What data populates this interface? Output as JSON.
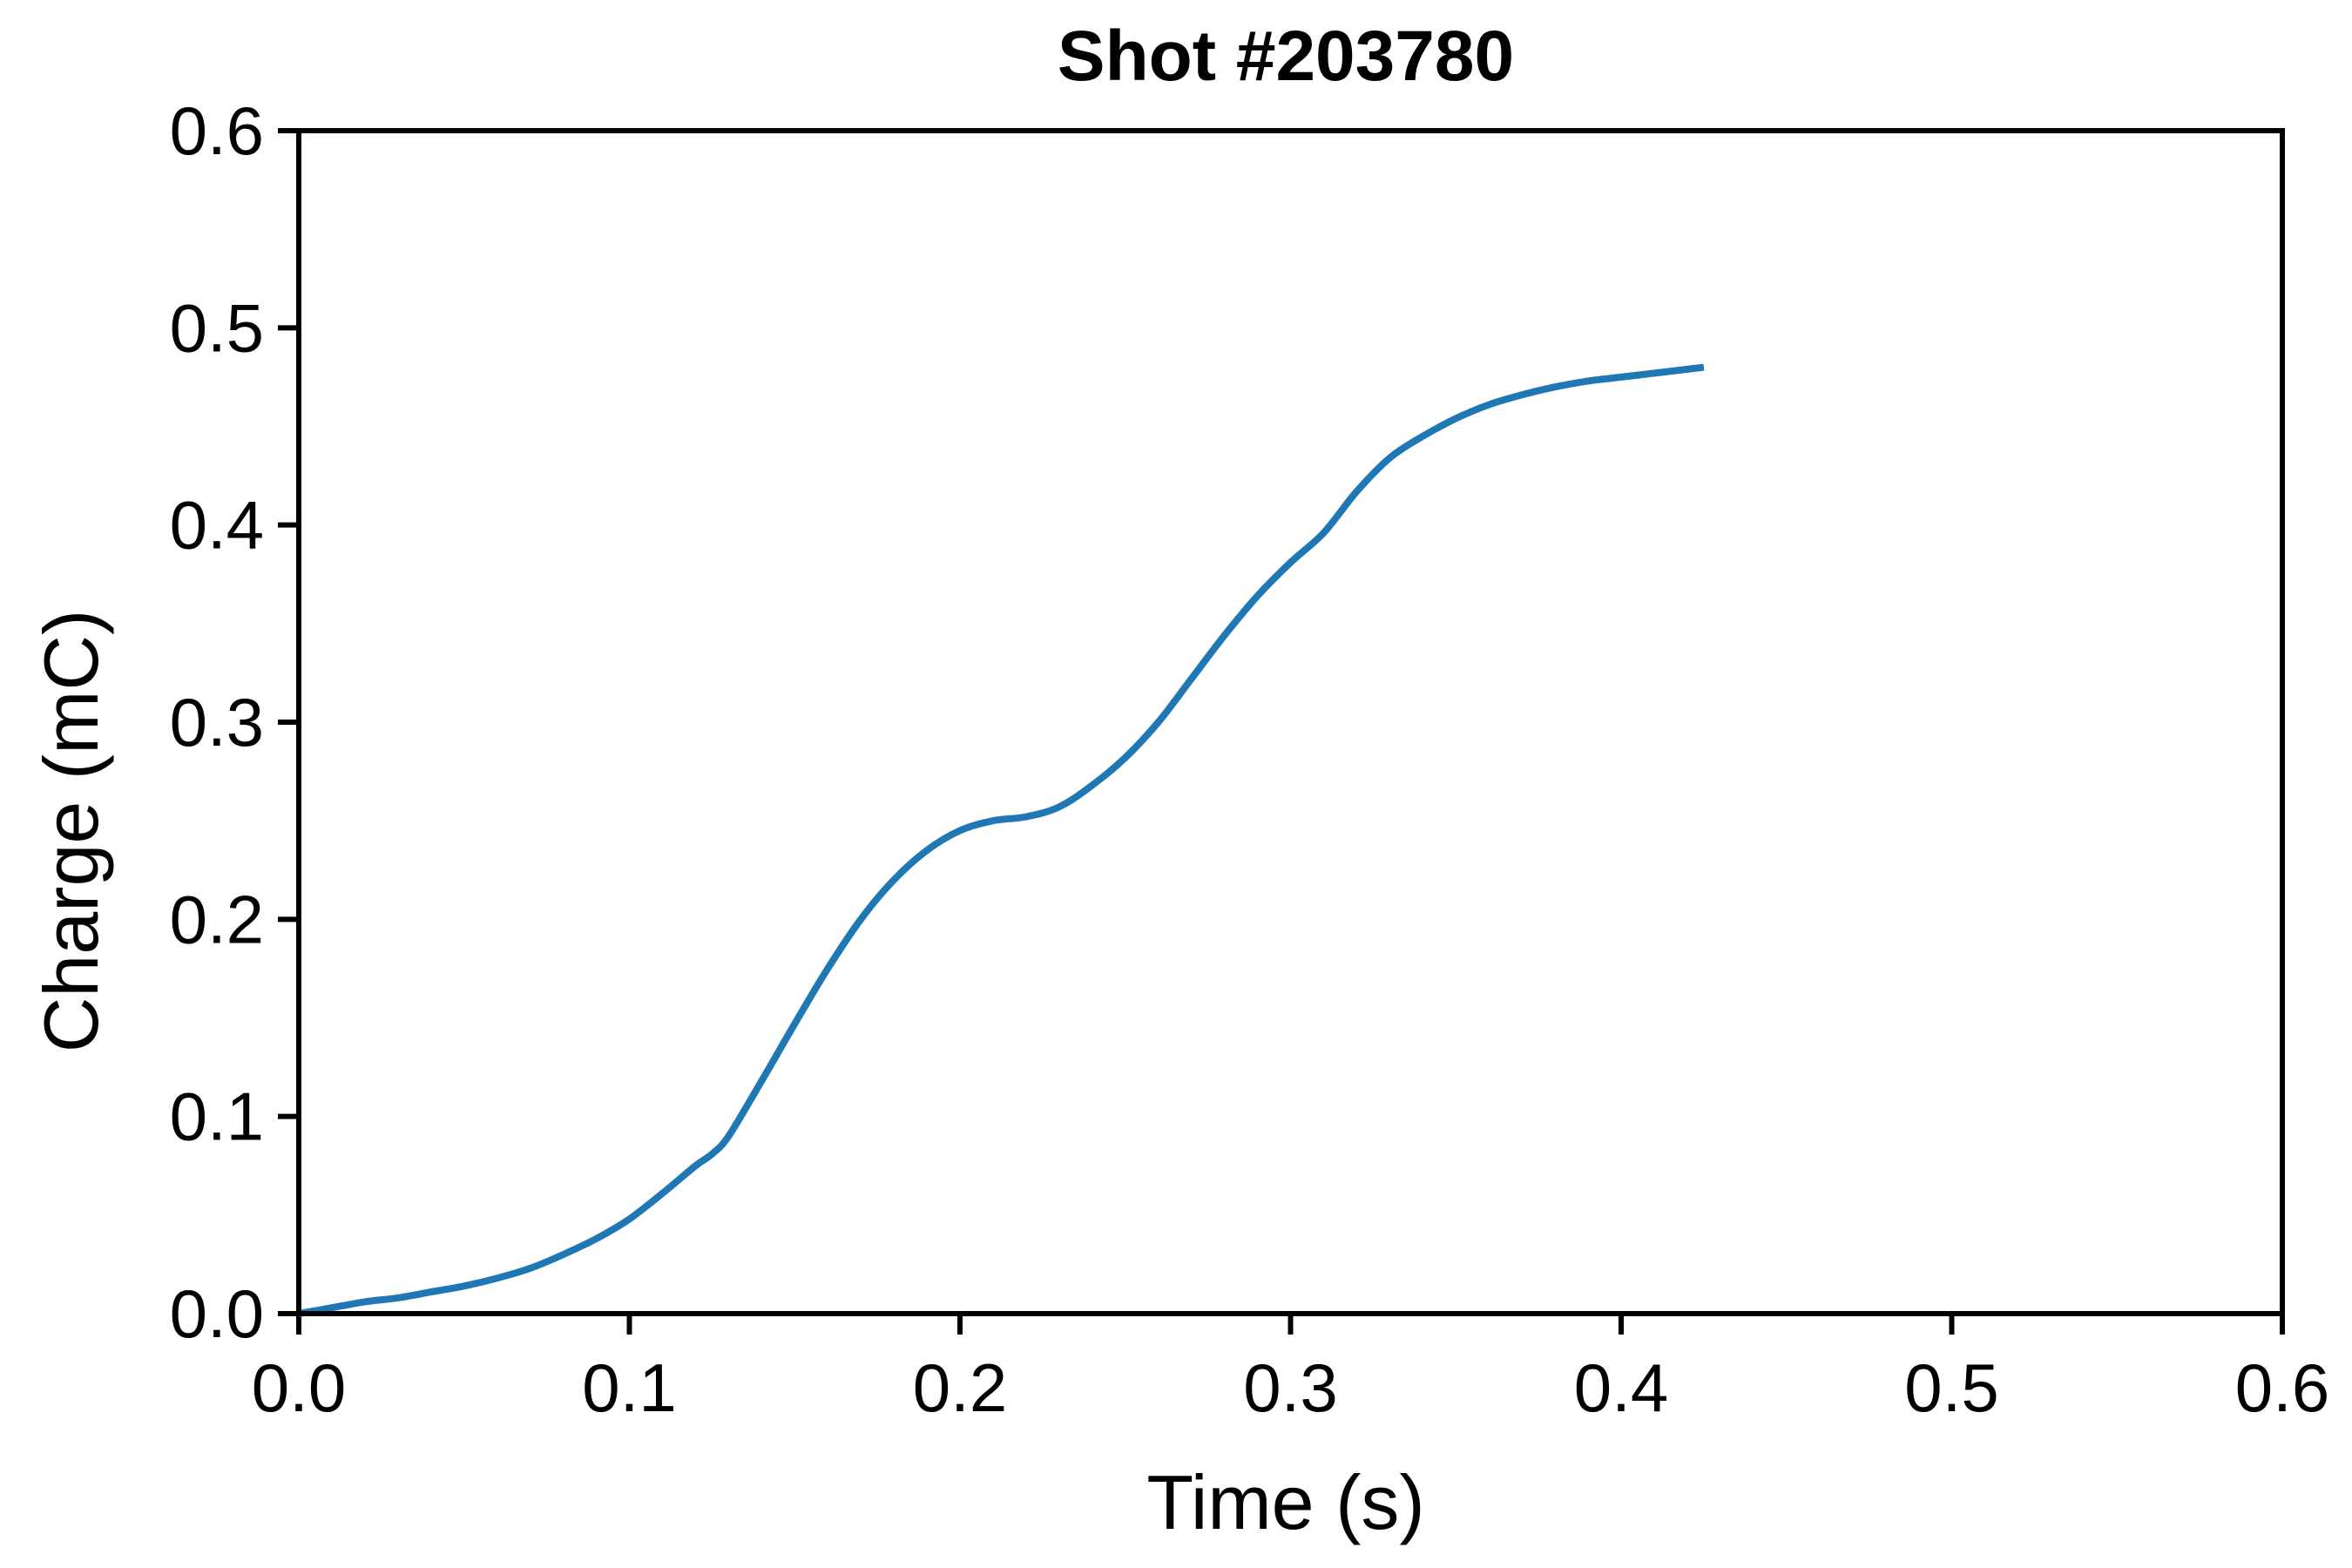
{
  "chart_data": {
    "type": "line",
    "title": "Shot #203780",
    "xlabel": "Time (s)",
    "ylabel": "Charge (mC)",
    "xlim": [
      0.0,
      0.6
    ],
    "ylim": [
      0.0,
      0.6
    ],
    "xticks": [
      0.0,
      0.1,
      0.2,
      0.3,
      0.4,
      0.5,
      0.6
    ],
    "yticks": [
      0.0,
      0.1,
      0.2,
      0.3,
      0.4,
      0.5,
      0.6
    ],
    "xtick_labels": [
      "0.0",
      "0.1",
      "0.2",
      "0.3",
      "0.4",
      "0.5",
      "0.6"
    ],
    "ytick_labels": [
      "0.0",
      "0.1",
      "0.2",
      "0.3",
      "0.4",
      "0.5",
      "0.6"
    ],
    "grid": false,
    "legend": "none",
    "colors": {
      "series": "#1f77b4",
      "frame": "#000000"
    },
    "series": [
      {
        "x": [
          0.0,
          0.01,
          0.02,
          0.03,
          0.04,
          0.05,
          0.06,
          0.07,
          0.08,
          0.09,
          0.1,
          0.11,
          0.12,
          0.125,
          0.13,
          0.14,
          0.15,
          0.16,
          0.17,
          0.18,
          0.19,
          0.2,
          0.21,
          0.22,
          0.23,
          0.24,
          0.25,
          0.26,
          0.27,
          0.28,
          0.29,
          0.3,
          0.31,
          0.32,
          0.33,
          0.34,
          0.35,
          0.36,
          0.37,
          0.38,
          0.39,
          0.4,
          0.41,
          0.425
        ],
        "y": [
          0.0,
          0.003,
          0.006,
          0.008,
          0.011,
          0.014,
          0.018,
          0.023,
          0.03,
          0.038,
          0.048,
          0.061,
          0.075,
          0.081,
          0.09,
          0.118,
          0.147,
          0.175,
          0.2,
          0.22,
          0.235,
          0.245,
          0.25,
          0.252,
          0.257,
          0.268,
          0.282,
          0.3,
          0.322,
          0.344,
          0.364,
          0.381,
          0.396,
          0.417,
          0.434,
          0.445,
          0.454,
          0.461,
          0.466,
          0.47,
          0.473,
          0.475,
          0.477,
          0.48
        ]
      }
    ]
  }
}
